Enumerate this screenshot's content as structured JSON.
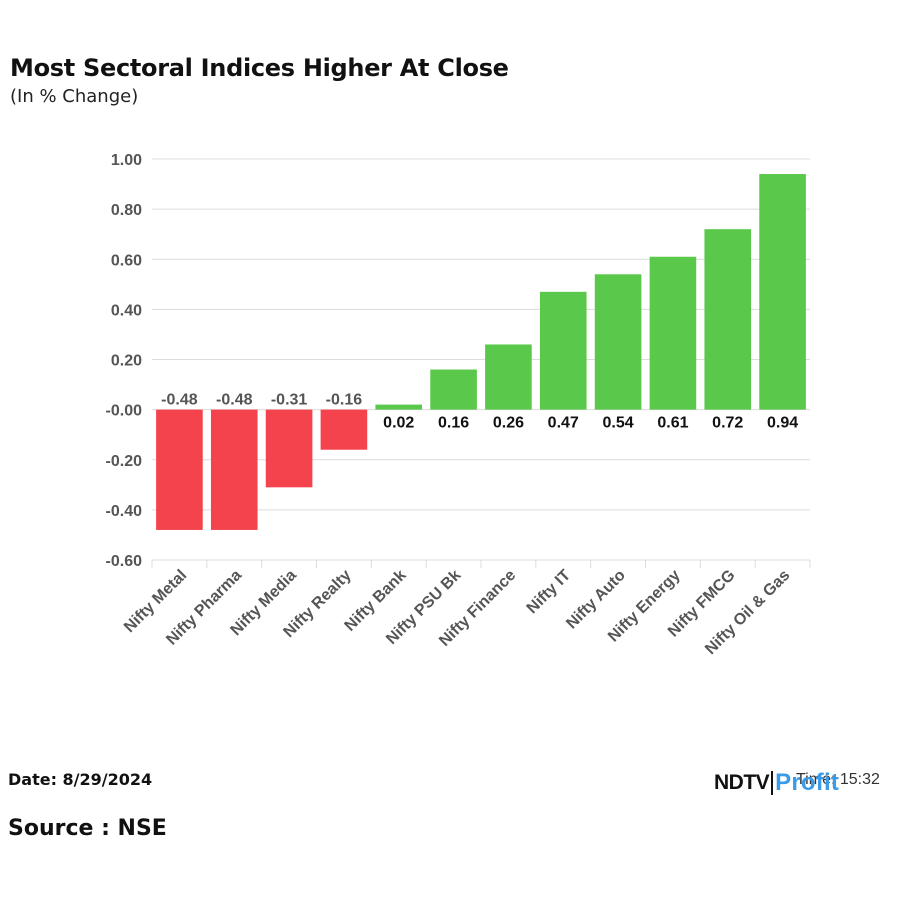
{
  "header": {
    "title": "Most Sectoral Indices Higher At Close",
    "subtitle": "(In % Change)"
  },
  "footer": {
    "date_text": "Date: 8/29/2024",
    "source_text": "Source : NSE",
    "logo_ndtv": "NDTV",
    "logo_profit": "Profit",
    "time_text": "Time: 15:32"
  },
  "colors": {
    "positive": "#5ac84a",
    "negative": "#f4434c",
    "grid": "#dcdcdc",
    "axis_text": "#555555"
  },
  "chart_data": {
    "type": "bar",
    "title": "Most Sectoral Indices Higher At Close",
    "subtitle": "(In % Change)",
    "categories": [
      "Nifty Metal",
      "Nifty Pharma",
      "Nifty Media",
      "Nifty Realty",
      "Nifty Bank",
      "Nifty PSU Bk",
      "Nifty Finance",
      "Nifty IT",
      "Nifty Auto",
      "Nifty Energy",
      "Nifty FMCG",
      "Nifty Oil & Gas"
    ],
    "values": [
      -0.48,
      -0.48,
      -0.31,
      -0.16,
      0.02,
      0.16,
      0.26,
      0.47,
      0.54,
      0.61,
      0.72,
      0.94
    ],
    "value_labels": [
      "-0.48",
      "-0.48",
      "-0.31",
      "-0.16",
      "0.02",
      "0.16",
      "0.26",
      "0.47",
      "0.54",
      "0.61",
      "0.72",
      "0.94"
    ],
    "yticks": [
      1.0,
      0.8,
      0.6,
      0.4,
      0.2,
      0.0,
      -0.2,
      -0.4,
      -0.6
    ],
    "ytick_labels": [
      "1.00",
      "0.80",
      "0.60",
      "0.40",
      "0.20",
      "-0.00",
      "-0.20",
      "-0.40",
      "-0.60"
    ],
    "ylim": [
      -0.6,
      1.0
    ],
    "xlabel": "",
    "ylabel": "",
    "grid": true,
    "legend": false
  }
}
